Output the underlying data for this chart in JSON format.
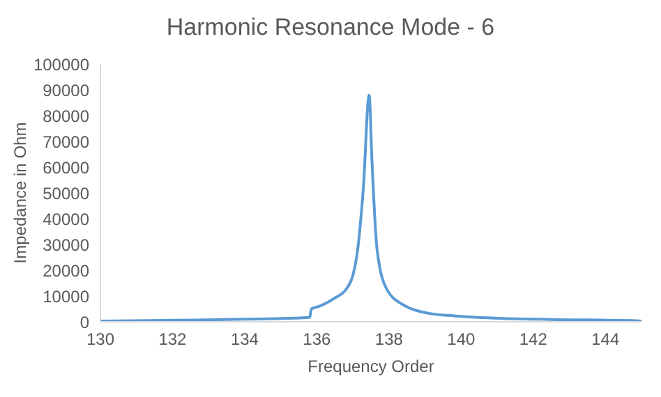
{
  "chart_data": {
    "type": "line",
    "title": "Harmonic Resonance Mode - 6",
    "xlabel": "Frequency Order",
    "ylabel": "Impedance  in Ohm",
    "x": [
      130,
      132,
      134,
      135.8,
      135.85,
      136.06,
      136.46,
      136.86,
      137,
      137.13,
      137.2,
      137.29,
      137.45,
      137.53,
      137.67,
      137.94,
      138.47,
      139.14,
      139.8,
      141.15,
      142.5,
      144.85,
      145
    ],
    "series": [
      {
        "color": "#5b9bd5",
        "values": [
          300,
          600,
          1000,
          1700,
          5000,
          6000,
          8900,
          13600,
          18000,
          27700,
          37000,
          52000,
          88000,
          62000,
          28000,
          12600,
          6000,
          3200,
          2300,
          1300,
          900,
          400,
          300
        ]
      }
    ],
    "xlim": [
      130,
      145
    ],
    "xticks": [
      130,
      132,
      134,
      136,
      138,
      140,
      142,
      144
    ],
    "ylim": [
      0,
      100000
    ],
    "yticks": [
      0,
      10000,
      20000,
      30000,
      40000,
      50000,
      60000,
      70000,
      80000,
      90000,
      100000
    ],
    "grid": false,
    "legend": false,
    "marker": "none",
    "line_style": "solid"
  }
}
